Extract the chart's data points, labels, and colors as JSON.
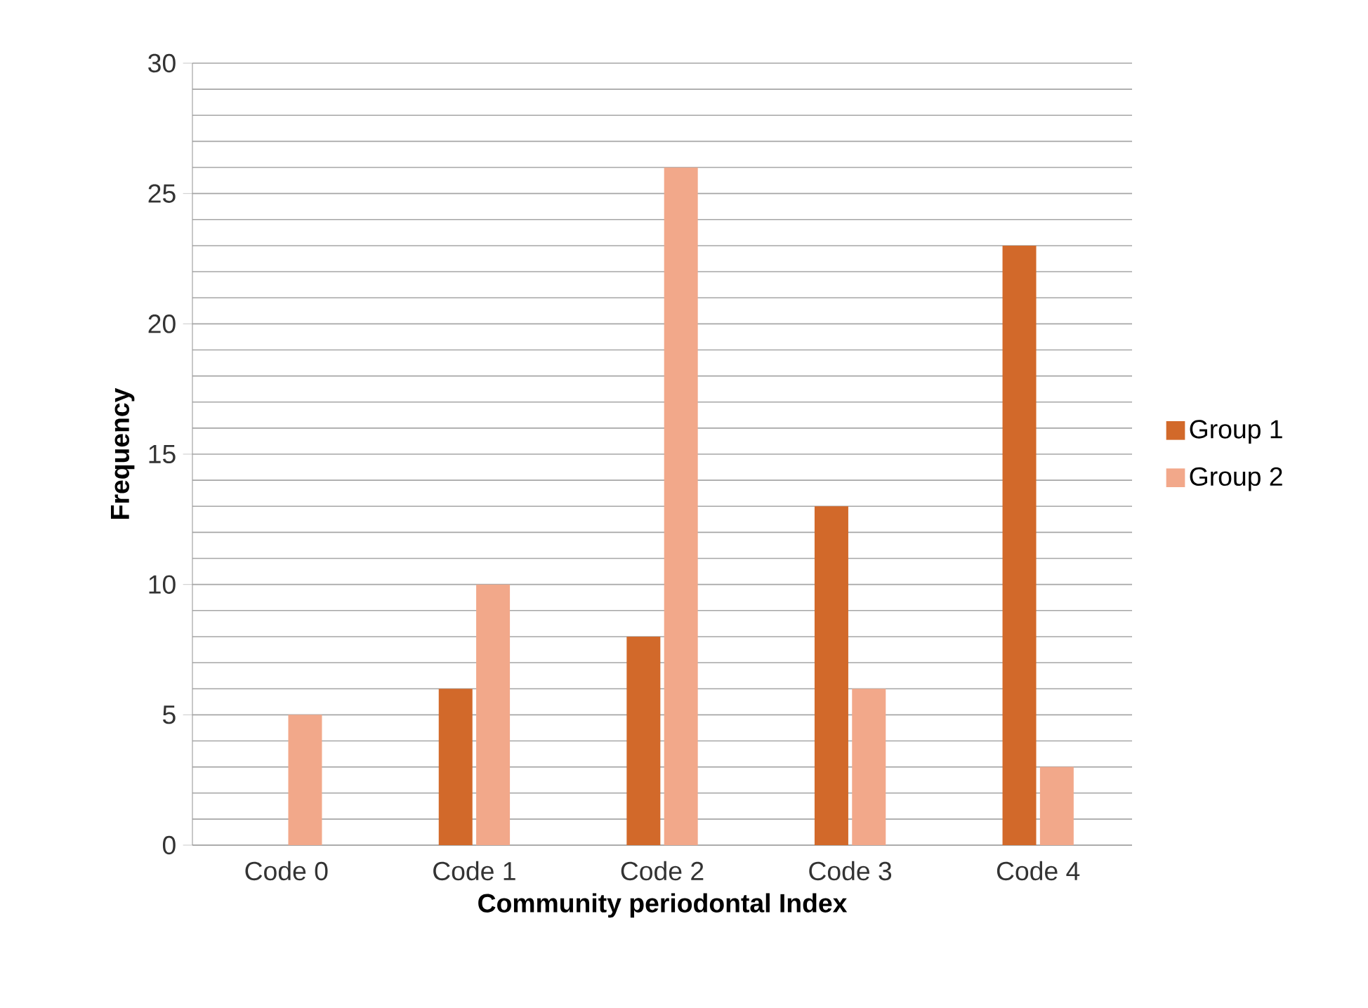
{
  "chart_data": {
    "type": "bar",
    "xlabel": "Community periodontal Index",
    "ylabel": "Frequency",
    "categories": [
      "Code 0",
      "Code 1",
      "Code 2",
      "Code 3",
      "Code 4"
    ],
    "series": [
      {
        "name": "Group 1",
        "color": "#d2692a",
        "values": [
          0,
          6,
          8,
          13,
          23
        ]
      },
      {
        "name": "Group 2",
        "color": "#f2a88a",
        "values": [
          5,
          10,
          26,
          6,
          3
        ]
      }
    ],
    "ylim": [
      0,
      30
    ],
    "yticks": [
      0,
      5,
      10,
      15,
      20,
      25,
      30
    ],
    "grid": "y",
    "legend": "right"
  }
}
